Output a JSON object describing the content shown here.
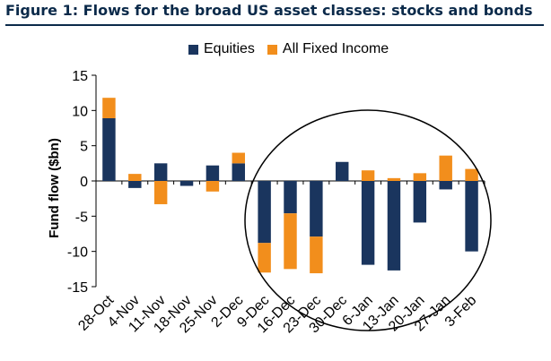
{
  "figure_title": "Figure 1: Flows for the broad US asset classes: stocks and bonds",
  "chart_data": {
    "type": "bar",
    "stacked": true,
    "title": "Figure 1: Flows for the broad US asset classes: stocks and bonds",
    "ylabel": "Fund flow ($bn)",
    "xlabel": "",
    "ylim": [
      -15,
      15
    ],
    "yticks": [
      15,
      10,
      5,
      0,
      -5,
      -10,
      -15
    ],
    "grid": false,
    "legend": "top-center",
    "categories": [
      "28-Oct",
      "4-Nov",
      "11-Nov",
      "18-Nov",
      "25-Nov",
      "2-Dec",
      "9-Dec",
      "16-Dec",
      "23-Dec",
      "30-Dec",
      "6-Jan",
      "13-Jan",
      "20-Jan",
      "27-Jan",
      "3-Feb"
    ],
    "series": [
      {
        "name": "Equities",
        "color": "#1a355e",
        "values": [
          8.9,
          -1.0,
          2.5,
          -0.7,
          2.2,
          2.5,
          -8.8,
          -4.6,
          -7.9,
          2.7,
          -11.9,
          -12.7,
          -5.9,
          -1.2,
          -10.0
        ]
      },
      {
        "name": "All Fixed Income",
        "color": "#f28e1c",
        "values": [
          2.9,
          1.0,
          -3.3,
          0.0,
          -1.5,
          1.5,
          -4.2,
          -7.9,
          -5.2,
          0.0,
          1.5,
          0.4,
          1.1,
          3.6,
          1.7
        ]
      }
    ],
    "annotations": [
      {
        "type": "ellipse",
        "description": "highlight"
      }
    ]
  }
}
